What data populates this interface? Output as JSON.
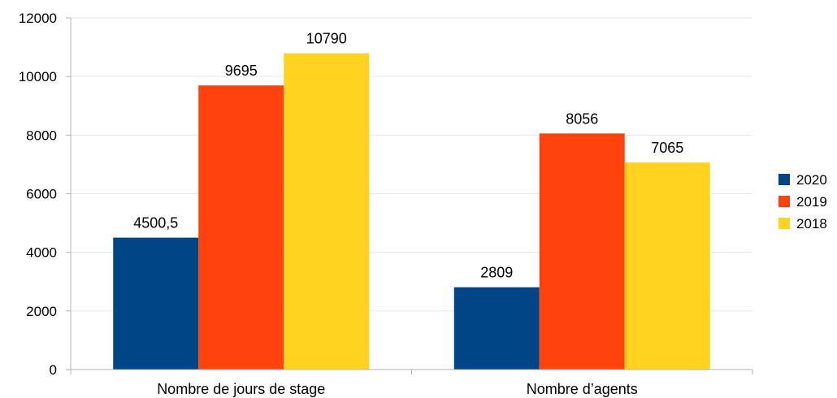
{
  "chart_data": {
    "type": "bar",
    "categories": [
      "Nombre de jours de stage",
      "Nombre d’agents"
    ],
    "series": [
      {
        "name": "2020",
        "values": [
          4500.5,
          2809
        ],
        "labels": [
          "4500,5",
          "2809"
        ],
        "color": "#004586"
      },
      {
        "name": "2019",
        "values": [
          9695,
          8056
        ],
        "labels": [
          "9695",
          "8056"
        ],
        "color": "#ff420e"
      },
      {
        "name": "2018",
        "values": [
          10790,
          7065
        ],
        "labels": [
          "10790",
          "7065"
        ],
        "color": "#ffd320"
      }
    ],
    "ylim": [
      0,
      12000
    ],
    "yticks": [
      0,
      2000,
      4000,
      6000,
      8000,
      10000,
      12000
    ],
    "grid": true,
    "legend_position": "right",
    "gridline_color": "#e6e6e6",
    "axis_color": "#b3b3b3"
  }
}
